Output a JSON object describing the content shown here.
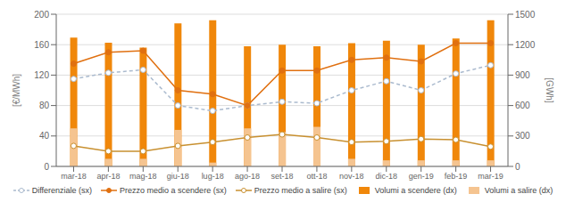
{
  "chart_data": {
    "type": "combo",
    "categories": [
      "mar-18",
      "apr-18",
      "mag-18",
      "giu-18",
      "lug-18",
      "ago-18",
      "set-18",
      "ott-18",
      "nov-18",
      "dic-18",
      "gen-19",
      "feb-19",
      "mar-19"
    ],
    "series": [
      {
        "name": "Differenziale (sx)",
        "type": "line",
        "color": "#AABACE",
        "line_style": "dashed",
        "marker": "open_circle",
        "values": [
          115,
          123,
          127,
          80,
          73,
          80,
          85,
          83,
          100,
          112,
          100,
          122,
          133
        ]
      },
      {
        "name": "Prezzo medio a scendere (sx)",
        "type": "line",
        "color": "#E07010",
        "line_style": "solid",
        "marker": "circle",
        "values": [
          135,
          150,
          152,
          100,
          95,
          80,
          126,
          126,
          140,
          143,
          138,
          162,
          162
        ]
      },
      {
        "name": "Prezzo medio a salire (sx)",
        "type": "line",
        "color": "#C89030",
        "line_style": "solid",
        "marker": "open_circle",
        "values": [
          27,
          20,
          20,
          27,
          32,
          38,
          42,
          38,
          32,
          33,
          36,
          35,
          26
        ]
      },
      {
        "name": "Volumi a scendere (dx)",
        "type": "bar",
        "axis": "y2",
        "color": "#F0870A",
        "values": [
          1270,
          1220,
          1170,
          1410,
          1440,
          1185,
          1200,
          1185,
          1215,
          1240,
          1200,
          1260,
          1440
        ]
      },
      {
        "name": "Volumi a salire (dx)",
        "type": "bar",
        "axis": "y2",
        "color": "#F5C490",
        "values": [
          375,
          75,
          75,
          360,
          38,
          375,
          338,
          390,
          75,
          60,
          60,
          60,
          60
        ]
      }
    ],
    "ylabel": "[€/MWh]",
    "y2label": "[GWh]",
    "ylim": [
      0,
      200
    ],
    "yticks": [
      0,
      40,
      80,
      120,
      160,
      200
    ],
    "y2lim": [
      0,
      1500
    ],
    "y2ticks": [
      0,
      300,
      600,
      900,
      1200,
      1500
    ],
    "grid": true,
    "legend": "bottom",
    "stacked": false
  }
}
